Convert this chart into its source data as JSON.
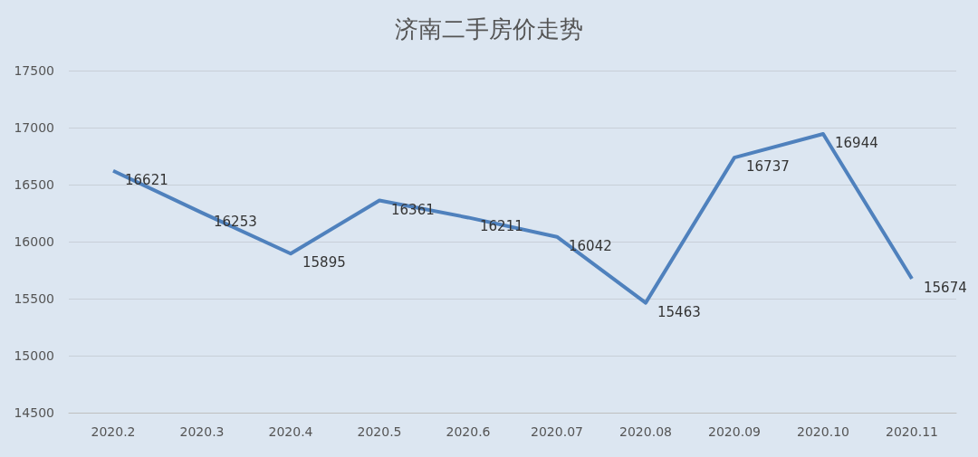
{
  "chart_data": {
    "type": "line",
    "title": "济南二手房价走势",
    "categories": [
      "2020.2",
      "2020.3",
      "2020.4",
      "2020.5",
      "2020.6",
      "2020.07",
      "2020.08",
      "2020.09",
      "2020.10",
      "2020.11"
    ],
    "values": [
      16621,
      16253,
      15895,
      16361,
      16211,
      16042,
      15463,
      16737,
      16944,
      15674
    ],
    "color": "#4f81bd",
    "ylim": [
      14500,
      17500
    ],
    "yticks": [
      14500,
      15000,
      15500,
      16000,
      16500,
      17000,
      17500
    ],
    "grid": "y",
    "marker": "none",
    "data_labels": true
  }
}
